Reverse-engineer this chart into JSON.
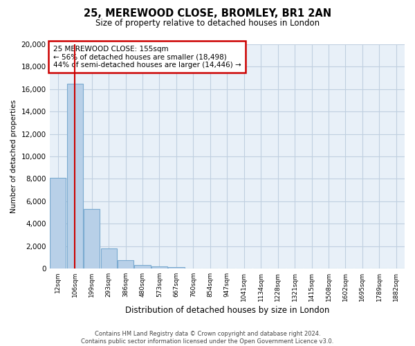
{
  "title": "25, MEREWOOD CLOSE, BROMLEY, BR1 2AN",
  "subtitle": "Size of property relative to detached houses in London",
  "xlabel": "Distribution of detached houses by size in London",
  "ylabel": "Number of detached properties",
  "bar_labels": [
    "12sqm",
    "106sqm",
    "199sqm",
    "293sqm",
    "386sqm",
    "480sqm",
    "573sqm",
    "667sqm",
    "760sqm",
    "854sqm",
    "947sqm",
    "1041sqm",
    "1134sqm",
    "1228sqm",
    "1321sqm",
    "1415sqm",
    "1508sqm",
    "1602sqm",
    "1695sqm",
    "1789sqm",
    "1882sqm"
  ],
  "bar_values": [
    8100,
    16500,
    5300,
    1800,
    750,
    300,
    170,
    150,
    0,
    0,
    0,
    0,
    0,
    0,
    0,
    0,
    0,
    0,
    0,
    0,
    0
  ],
  "bar_color": "#b8d0e8",
  "bar_edge_color": "#7aaad0",
  "vline_color": "#cc0000",
  "vline_pos": 1.5,
  "ylim": [
    0,
    20000
  ],
  "yticks": [
    0,
    2000,
    4000,
    6000,
    8000,
    10000,
    12000,
    14000,
    16000,
    18000,
    20000
  ],
  "annotation_title": "25 MEREWOOD CLOSE: 155sqm",
  "annotation_line1": "← 56% of detached houses are smaller (18,498)",
  "annotation_line2": "44% of semi-detached houses are larger (14,446) →",
  "annotation_box_color": "white",
  "annotation_border_color": "#cc0000",
  "footer_line1": "Contains HM Land Registry data © Crown copyright and database right 2024.",
  "footer_line2": "Contains public sector information licensed under the Open Government Licence v3.0.",
  "bg_color": "white",
  "plot_bg_color": "#e8f0f8",
  "grid_color": "#c0cfe0"
}
